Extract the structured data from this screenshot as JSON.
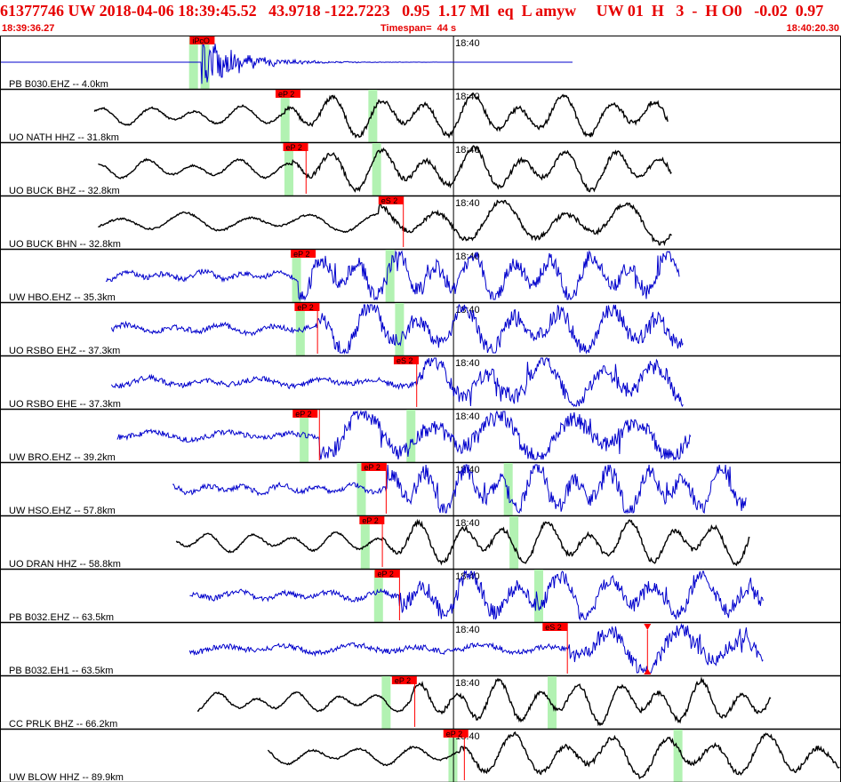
{
  "header": {
    "event_line": "61377746 UW 2018-04-06 18:39:45.52   43.9718 -122.7223   0.95  1.17 Ml  eq  L amyw     UW 01  H   3  -  H O0   -0.02  0.97",
    "start_time": "18:39:36.27",
    "timespan": "Timespan=  44 s",
    "end_time": "18:40:20.30"
  },
  "chart_data": {
    "type": "line",
    "title": "",
    "x_range": [
      0,
      44
    ],
    "minute_tick_label": "18:40",
    "minute_tick_time": 23.73,
    "grid": false,
    "traces": [
      {
        "label": "PB B030.EHZ -- 4.0km",
        "color": "#0000cc",
        "start": 0.0,
        "end": 30.0,
        "signal_start": 10.5,
        "pick": {
          "label": "iPcO",
          "time": 9.9,
          "s_time": null
        },
        "green": [
          10.1,
          10.7
        ]
      },
      {
        "label": "UO NATH HHZ -- 31.8km",
        "color": "#000000",
        "start": 4.9,
        "end": 35.0,
        "signal_start": 14.9,
        "pick": {
          "label": "eP 2",
          "time": 14.4,
          "s_time": null
        },
        "green": [
          14.9,
          19.5
        ]
      },
      {
        "label": "UO BUCK BHZ -- 32.8km",
        "color": "#000000",
        "start": 5.1,
        "end": 35.2,
        "signal_start": 15.3,
        "pick": {
          "label": "eP 2",
          "time": 14.8,
          "s_time": 16.0
        },
        "green": [
          15.1,
          19.7
        ]
      },
      {
        "label": "UO BUCK BHN -- 32.8km",
        "color": "#000000",
        "start": 5.1,
        "end": 35.2,
        "signal_start": 19.8,
        "pick": {
          "label": "eS 2",
          "time": 19.8,
          "s_time": 21.1
        },
        "green": []
      },
      {
        "label": "UW HBO.EHZ -- 35.3km",
        "color": "#0000cc",
        "start": 5.5,
        "end": 35.6,
        "signal_start": 15.6,
        "pick": {
          "label": "eP 2",
          "time": 15.2,
          "s_time": null
        },
        "green": [
          15.5,
          20.4
        ]
      },
      {
        "label": "UO RSBO EHZ -- 37.3km",
        "color": "#0000cc",
        "start": 5.8,
        "end": 35.8,
        "signal_start": 16.6,
        "pick": {
          "label": "eP 2",
          "time": 15.4,
          "s_time": 16.6
        },
        "green": [
          15.7,
          20.9
        ]
      },
      {
        "label": "UO RSBO EHE -- 37.3km",
        "color": "#0000cc",
        "start": 5.8,
        "end": 35.8,
        "signal_start": 21.8,
        "pick": {
          "label": "eS 2",
          "time": 20.6,
          "s_time": 21.8
        },
        "green": []
      },
      {
        "label": "UW BRO.EHZ -- 39.2km",
        "color": "#0000cc",
        "start": 6.1,
        "end": 36.2,
        "signal_start": 16.7,
        "pick": {
          "label": "eP 2",
          "time": 15.3,
          "s_time": 16.7
        },
        "green": [
          15.9,
          21.5
        ]
      },
      {
        "label": "UW HSO.EHZ -- 57.8km",
        "color": "#0000cc",
        "start": 9.0,
        "end": 39.1,
        "signal_start": 20.2,
        "pick": {
          "label": "eP 2",
          "time": 18.9,
          "s_time": 20.2
        },
        "green": [
          18.9,
          26.6
        ]
      },
      {
        "label": "UO DRAN HHZ -- 58.8km",
        "color": "#000000",
        "start": 9.2,
        "end": 39.3,
        "signal_start": 20.0,
        "pick": {
          "label": "eP 2",
          "time": 18.8,
          "s_time": 20.0
        },
        "green": [
          19.1,
          26.9
        ]
      },
      {
        "label": "PB B032.EHZ -- 63.5km",
        "color": "#0000cc",
        "start": 9.9,
        "end": 40.0,
        "signal_start": 20.9,
        "pick": {
          "label": "eP 2",
          "time": 19.6,
          "s_time": 20.9
        },
        "green": [
          19.8,
          28.2
        ]
      },
      {
        "label": "PB B032.EH1 -- 63.5km",
        "color": "#0000cc",
        "start": 9.9,
        "end": 40.0,
        "signal_start": 29.7,
        "pick": {
          "label": "eS 2",
          "time": 28.4,
          "s_time": 29.7
        },
        "green": [],
        "markers": [
          33.9
        ]
      },
      {
        "label": "CC PRLK BHZ -- 66.2km",
        "color": "#000000",
        "start": 10.3,
        "end": 40.4,
        "signal_start": 21.5,
        "pick": {
          "label": "eP 2",
          "time": 20.5,
          "s_time": 21.7
        },
        "green": [
          20.2,
          28.9
        ]
      },
      {
        "label": "UW BLOW HHZ -- 89.9km",
        "color": "#000000",
        "start": 14.0,
        "end": 44.0,
        "signal_start": 24.1,
        "pick": {
          "label": "eP 2",
          "time": 23.2,
          "s_time": 24.3
        },
        "green": [
          23.7,
          35.5
        ]
      }
    ]
  }
}
